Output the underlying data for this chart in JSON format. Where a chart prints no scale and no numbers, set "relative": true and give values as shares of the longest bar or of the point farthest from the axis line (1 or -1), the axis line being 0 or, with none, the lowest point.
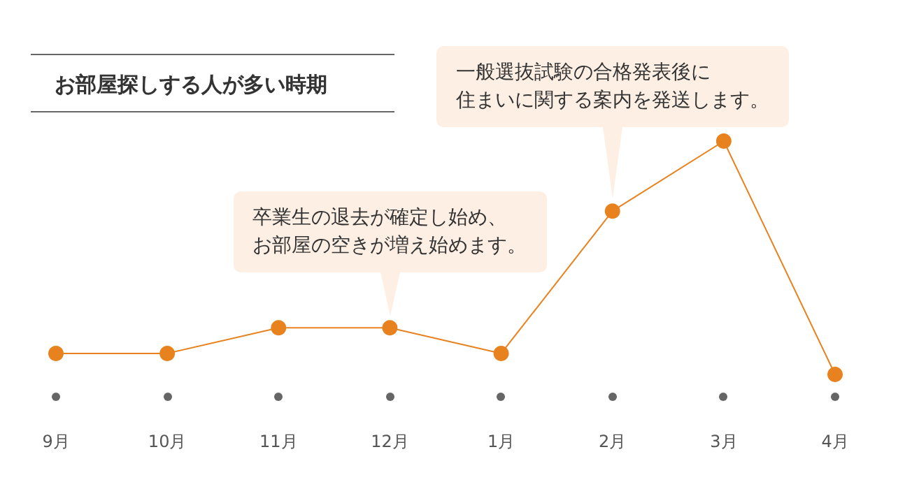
{
  "chart_data": {
    "type": "line",
    "title": "お部屋探しする人が多い時期",
    "relative": true,
    "categories": [
      "9月",
      "10月",
      "11月",
      "12月",
      "1月",
      "2月",
      "3月",
      "4月"
    ],
    "series": [
      {
        "color": "#e8821e",
        "values": [
          0.09,
          0.09,
          0.2,
          0.2,
          0.09,
          0.7,
          1,
          0
        ]
      }
    ],
    "marker": "circle",
    "line_style": "solid",
    "grid": false,
    "annotations": [
      "卒業生の退去が確定し始め、",
      "お部屋の空きが増え始めます。",
      "一般選抜試験の合格発表後に",
      "住まいに関する案内を発送します。"
    ]
  }
}
